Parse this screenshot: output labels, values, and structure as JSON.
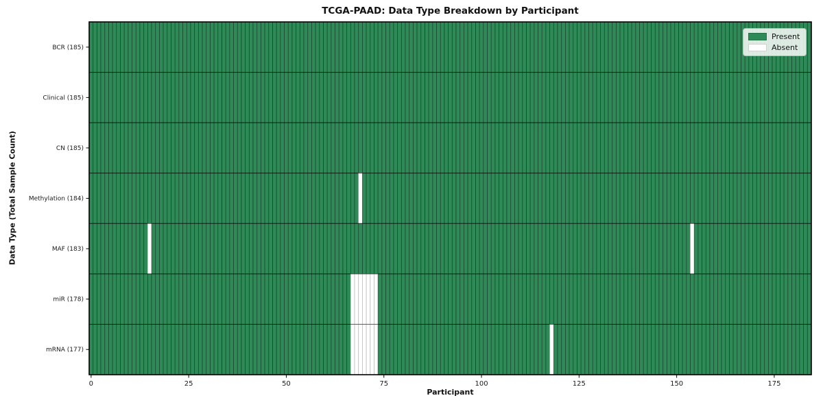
{
  "chart_data": {
    "type": "heatmap",
    "title": "TCGA-PAAD: Data Type Breakdown by Participant",
    "xlabel": "Participant",
    "ylabel": "Data Type (Total Sample Count)",
    "n_participants": 185,
    "x_ticks": [
      0,
      25,
      50,
      75,
      100,
      125,
      150,
      175
    ],
    "legend_position": "upper-right",
    "legend": [
      {
        "label": "Present",
        "color": "#2e8b57"
      },
      {
        "label": "Absent",
        "color": "#ffffff"
      }
    ],
    "colors": {
      "present": "#2e8b57",
      "absent": "#ffffff",
      "cell_border_on_present": "rgba(0,0,0,0.42)",
      "cell_border_on_absent": "#bdbdbd",
      "row_divider": "rgba(0,0,0,0.55)",
      "plot_border": "#000000"
    },
    "rows": [
      {
        "label": "BCR (185)",
        "total_samples": 185,
        "absent_participants": []
      },
      {
        "label": "Clinical (185)",
        "total_samples": 185,
        "absent_participants": []
      },
      {
        "label": "CN (185)",
        "total_samples": 185,
        "absent_participants": []
      },
      {
        "label": "Methylation (184)",
        "total_samples": 184,
        "absent_participants": [
          69
        ]
      },
      {
        "label": "MAF (183)",
        "total_samples": 183,
        "absent_participants": [
          15,
          154
        ]
      },
      {
        "label": "miR (178)",
        "total_samples": 178,
        "absent_participants": [
          67,
          68,
          69,
          70,
          71,
          72,
          73
        ]
      },
      {
        "label": "mRNA (177)",
        "total_samples": 177,
        "absent_participants": [
          67,
          68,
          69,
          70,
          71,
          72,
          73,
          118
        ]
      }
    ]
  }
}
